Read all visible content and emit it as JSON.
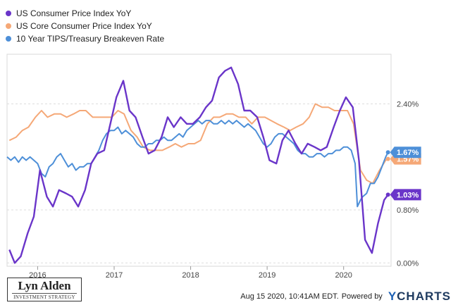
{
  "chart_data": {
    "type": "line",
    "title": "",
    "xlabel": "",
    "ylabel": "",
    "x_ticks": [
      {
        "label": "2016",
        "value": 2016.0
      },
      {
        "label": "2017",
        "value": 2017.0
      },
      {
        "label": "2018",
        "value": 2018.0
      },
      {
        "label": "2019",
        "value": 2019.0
      },
      {
        "label": "2020",
        "value": 2020.0
      }
    ],
    "y_ticks": [
      {
        "label": "0.00%",
        "value": 0.0
      },
      {
        "label": "0.80%",
        "value": 0.8
      },
      {
        "label": "2.40%",
        "value": 2.4
      }
    ],
    "xlim": [
      2015.6,
      2020.62
    ],
    "ylim": [
      -0.05,
      3.15
    ],
    "grid": "horizontal",
    "legend_position": "top-left",
    "series": [
      {
        "name": "US Consumer Price Index YoY",
        "color": "#6a35c9",
        "end_label": "1.03%",
        "x": [
          2015.63,
          2015.7,
          2015.78,
          2015.87,
          2015.95,
          2016.03,
          2016.12,
          2016.2,
          2016.28,
          2016.37,
          2016.45,
          2016.53,
          2016.62,
          2016.7,
          2016.78,
          2016.87,
          2016.95,
          2017.03,
          2017.12,
          2017.2,
          2017.28,
          2017.37,
          2017.45,
          2017.53,
          2017.62,
          2017.7,
          2017.78,
          2017.87,
          2017.95,
          2018.03,
          2018.12,
          2018.2,
          2018.28,
          2018.37,
          2018.45,
          2018.53,
          2018.62,
          2018.7,
          2018.78,
          2018.87,
          2018.95,
          2019.03,
          2019.12,
          2019.2,
          2019.28,
          2019.37,
          2019.45,
          2019.53,
          2019.62,
          2019.7,
          2019.78,
          2019.87,
          2019.95,
          2020.03,
          2020.12,
          2020.2,
          2020.28,
          2020.37,
          2020.45,
          2020.53,
          2020.58
        ],
        "y": [
          0.2,
          0.0,
          0.1,
          0.45,
          0.7,
          1.4,
          1.0,
          0.85,
          1.1,
          1.05,
          1.0,
          0.85,
          1.1,
          1.5,
          1.65,
          1.7,
          2.1,
          2.5,
          2.75,
          2.3,
          2.2,
          1.9,
          1.65,
          1.7,
          1.9,
          2.2,
          2.05,
          2.2,
          2.1,
          2.1,
          2.2,
          2.35,
          2.45,
          2.8,
          2.9,
          2.95,
          2.7,
          2.3,
          2.3,
          2.2,
          1.9,
          1.55,
          1.5,
          1.85,
          2.0,
          1.8,
          1.65,
          1.8,
          1.75,
          1.7,
          1.75,
          2.05,
          2.3,
          2.5,
          2.35,
          1.55,
          0.35,
          0.15,
          0.6,
          0.95,
          1.03
        ]
      },
      {
        "name": "US Core Consumer Price Index YoY",
        "color": "#f5a877",
        "end_label": "1.57%",
        "x": [
          2015.63,
          2015.72,
          2015.8,
          2015.88,
          2015.97,
          2016.05,
          2016.13,
          2016.22,
          2016.3,
          2016.38,
          2016.47,
          2016.55,
          2016.63,
          2016.72,
          2016.8,
          2016.88,
          2016.97,
          2017.05,
          2017.13,
          2017.22,
          2017.3,
          2017.38,
          2017.47,
          2017.55,
          2017.63,
          2017.72,
          2017.8,
          2017.88,
          2017.97,
          2018.05,
          2018.13,
          2018.22,
          2018.3,
          2018.38,
          2018.47,
          2018.55,
          2018.63,
          2018.72,
          2018.8,
          2018.88,
          2018.97,
          2019.05,
          2019.13,
          2019.22,
          2019.3,
          2019.38,
          2019.47,
          2019.55,
          2019.63,
          2019.72,
          2019.8,
          2019.88,
          2019.97,
          2020.05,
          2020.13,
          2020.22,
          2020.3,
          2020.38,
          2020.47,
          2020.55,
          2020.58
        ],
        "y": [
          1.85,
          1.9,
          2.0,
          2.05,
          2.2,
          2.3,
          2.2,
          2.25,
          2.25,
          2.2,
          2.25,
          2.3,
          2.3,
          2.2,
          2.2,
          2.2,
          2.2,
          2.3,
          2.25,
          2.0,
          1.9,
          1.75,
          1.7,
          1.7,
          1.7,
          1.75,
          1.8,
          1.75,
          1.8,
          1.8,
          1.85,
          2.1,
          2.2,
          2.2,
          2.25,
          2.25,
          2.2,
          2.2,
          2.1,
          2.2,
          2.2,
          2.15,
          2.1,
          2.05,
          2.0,
          2.05,
          2.1,
          2.2,
          2.4,
          2.35,
          2.35,
          2.3,
          2.3,
          2.3,
          2.1,
          1.4,
          1.25,
          1.2,
          1.4,
          1.55,
          1.57
        ]
      },
      {
        "name": "10 Year TIPS/Treasury Breakeven Rate",
        "color": "#4d8fd8",
        "end_label": "1.67%",
        "x": [
          2015.6,
          2015.65,
          2015.7,
          2015.75,
          2015.8,
          2015.85,
          2015.9,
          2015.95,
          2016.0,
          2016.05,
          2016.1,
          2016.15,
          2016.2,
          2016.25,
          2016.3,
          2016.35,
          2016.4,
          2016.45,
          2016.5,
          2016.55,
          2016.6,
          2016.65,
          2016.7,
          2016.75,
          2016.8,
          2016.85,
          2016.9,
          2016.95,
          2017.0,
          2017.05,
          2017.1,
          2017.15,
          2017.2,
          2017.25,
          2017.3,
          2017.35,
          2017.4,
          2017.45,
          2017.5,
          2017.55,
          2017.6,
          2017.65,
          2017.7,
          2017.75,
          2017.8,
          2017.85,
          2017.9,
          2017.95,
          2018.0,
          2018.05,
          2018.1,
          2018.15,
          2018.2,
          2018.25,
          2018.3,
          2018.35,
          2018.4,
          2018.45,
          2018.5,
          2018.55,
          2018.6,
          2018.65,
          2018.7,
          2018.75,
          2018.8,
          2018.85,
          2018.9,
          2018.95,
          2019.0,
          2019.05,
          2019.1,
          2019.15,
          2019.2,
          2019.25,
          2019.3,
          2019.35,
          2019.4,
          2019.45,
          2019.5,
          2019.55,
          2019.6,
          2019.65,
          2019.7,
          2019.75,
          2019.8,
          2019.85,
          2019.9,
          2019.95,
          2020.0,
          2020.05,
          2020.1,
          2020.15,
          2020.18,
          2020.22,
          2020.25,
          2020.3,
          2020.35,
          2020.4,
          2020.45,
          2020.5,
          2020.55,
          2020.58
        ],
        "y": [
          1.6,
          1.55,
          1.6,
          1.52,
          1.6,
          1.55,
          1.6,
          1.55,
          1.5,
          1.35,
          1.3,
          1.45,
          1.5,
          1.6,
          1.65,
          1.55,
          1.45,
          1.5,
          1.4,
          1.45,
          1.45,
          1.5,
          1.5,
          1.6,
          1.7,
          1.85,
          1.95,
          2.0,
          2.0,
          2.05,
          1.95,
          2.0,
          1.95,
          1.9,
          1.8,
          1.75,
          1.75,
          1.8,
          1.8,
          1.85,
          1.85,
          1.9,
          1.85,
          1.85,
          1.9,
          1.95,
          1.9,
          2.0,
          2.05,
          2.1,
          2.15,
          2.1,
          2.15,
          2.15,
          2.1,
          2.1,
          2.15,
          2.1,
          2.15,
          2.1,
          2.15,
          2.1,
          2.05,
          2.1,
          2.05,
          2.0,
          1.9,
          1.8,
          1.75,
          1.8,
          1.9,
          1.95,
          1.95,
          1.9,
          1.85,
          1.8,
          1.7,
          1.65,
          1.65,
          1.6,
          1.6,
          1.65,
          1.65,
          1.6,
          1.65,
          1.65,
          1.7,
          1.7,
          1.75,
          1.75,
          1.7,
          1.5,
          0.85,
          0.95,
          1.0,
          1.05,
          1.2,
          1.2,
          1.3,
          1.45,
          1.6,
          1.67
        ]
      }
    ]
  },
  "branding": {
    "name": "Lyn Alden",
    "tagline": "INVESTMENT STRATEGY"
  },
  "footer": {
    "timestamp": "Aug 15 2020, 10:41AM EDT.",
    "powered_by": "Powered by",
    "logo_y": "Y",
    "logo_rest": "CHARTS"
  }
}
